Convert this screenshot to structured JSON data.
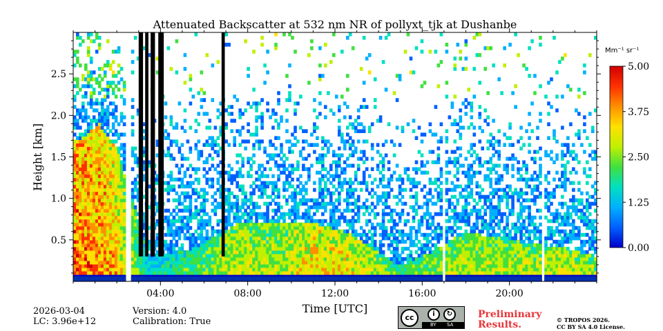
{
  "chart_data": {
    "type": "heatmap",
    "title": "Attenuated Backscatter at 532 nm NR of pollyxt_tjk at Dushanbe",
    "xlabel": "Time [UTC]",
    "ylabel": "Height [km]",
    "x_unit": "hours",
    "xlim": [
      0,
      24
    ],
    "ylim": [
      0,
      3.0
    ],
    "x_ticks": [
      4,
      8,
      12,
      16,
      20
    ],
    "x_tick_labels": [
      "04:00",
      "08:00",
      "12:00",
      "16:00",
      "20:00"
    ],
    "y_ticks": [
      0.5,
      1.0,
      1.5,
      2.0,
      2.5
    ],
    "y_tick_labels": [
      "0.5",
      "1.0",
      "1.5",
      "2.0",
      "2.5"
    ],
    "colorbar": {
      "label": "Mm⁻¹ sr⁻¹",
      "min": 0.0,
      "max": 5.0,
      "ticks": [
        0.0,
        1.25,
        2.5,
        3.75,
        5.0
      ],
      "tick_labels": [
        "0.00",
        "1.25",
        "2.50",
        "3.75",
        "5.00"
      ],
      "colormap": [
        "#0000cc",
        "#0060ff",
        "#00b0ff",
        "#00e0c0",
        "#40e040",
        "#c0f000",
        "#ffe000",
        "#ff9000",
        "#ff3000",
        "#d00000"
      ]
    },
    "data_gaps_hours": [
      [
        2.45,
        2.6
      ],
      [
        16.95,
        17.05
      ],
      [
        21.5,
        21.6
      ]
    ],
    "cloud_columns_hours": [
      [
        3.0,
        3.2
      ],
      [
        3.3,
        3.45
      ],
      [
        3.55,
        3.75
      ],
      [
        3.9,
        4.15
      ],
      [
        6.8,
        6.95
      ]
    ],
    "boundary_layer_profile": [
      {
        "t": 0.3,
        "top": 1.7,
        "intensity": 4.2
      },
      {
        "t": 1.2,
        "top": 1.9,
        "intensity": 4.0
      },
      {
        "t": 2.0,
        "top": 1.6,
        "intensity": 3.6
      },
      {
        "t": 3.5,
        "top": 0.3,
        "intensity": 2.0
      },
      {
        "t": 5.5,
        "top": 0.4,
        "intensity": 2.5
      },
      {
        "t": 7.5,
        "top": 0.7,
        "intensity": 3.2
      },
      {
        "t": 9.5,
        "top": 0.7,
        "intensity": 3.0
      },
      {
        "t": 11.0,
        "top": 0.7,
        "intensity": 3.6
      },
      {
        "t": 12.5,
        "top": 0.6,
        "intensity": 3.4
      },
      {
        "t": 13.8,
        "top": 0.4,
        "intensity": 3.2
      },
      {
        "t": 15.0,
        "top": 0.2,
        "intensity": 2.5
      },
      {
        "t": 16.0,
        "top": 0.3,
        "intensity": 2.8
      },
      {
        "t": 18.0,
        "top": 0.6,
        "intensity": 3.0
      },
      {
        "t": 20.0,
        "top": 0.5,
        "intensity": 3.0
      },
      {
        "t": 22.5,
        "top": 0.4,
        "intensity": 3.2
      },
      {
        "t": 24.0,
        "top": 0.3,
        "intensity": 3.0
      }
    ]
  },
  "footer": {
    "date": "2026-03-04",
    "lc": "LC: 3.96e+12",
    "version": "Version: 4.0",
    "calibration": "Calibration: True",
    "preliminary_line1": "Preliminary",
    "preliminary_line2": "Results.",
    "copyright_line1": "© TROPOS 2026.",
    "copyright_line2": "CC BY SA 4.0 License.",
    "badge": {
      "cc": "cc",
      "by": "BY",
      "sa": "SA"
    }
  }
}
